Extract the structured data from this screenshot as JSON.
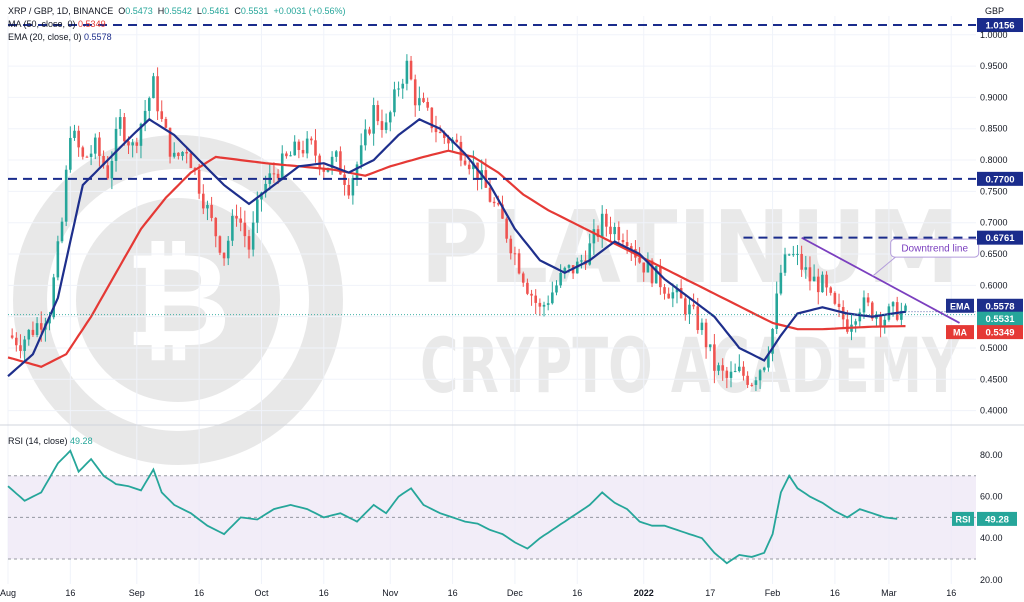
{
  "header": {
    "symbol": "XRP / GBP, 1D, BINANCE",
    "open_label": "O",
    "open": "0.5473",
    "high_label": "H",
    "high": "0.5542",
    "low_label": "L",
    "low": "0.5461",
    "close_label": "C",
    "close": "0.5531",
    "change": "+0.0031 (+0.56%)",
    "ma_label": "MA (50, close, 0)",
    "ma_value": "0.5349",
    "ema_label": "EMA (20, close, 0)",
    "ema_value": "0.5578",
    "rsi_label": "RSI (14, close)",
    "rsi_value": "49.28"
  },
  "currency": "GBP",
  "watermark": {
    "line1": "PLATINUM",
    "line2": "CRYPTO ACADEMY"
  },
  "colors": {
    "up": "#26a69a",
    "down": "#ef5350",
    "ema": "#1e2f8c",
    "ma": "#e53935",
    "rsi": "#26a69a",
    "level_line": "#1a2c8c",
    "trendline": "#7b3fbf",
    "rsi_band": "#ede7f6"
  },
  "chart_data": {
    "type": "candlestick",
    "title": "XRP / GBP, 1D, BINANCE",
    "price_axis": {
      "ticks": [
        "1.0000",
        "0.9500",
        "0.9000",
        "0.8500",
        "0.8000",
        "0.7500",
        "0.7000",
        "0.6500",
        "0.6000",
        "0.5500",
        "0.5000",
        "0.4500",
        "0.4000"
      ],
      "ylim": [
        0.385,
        1.03
      ]
    },
    "time_axis": {
      "labels": [
        "Aug",
        "16",
        "Sep",
        "16",
        "Oct",
        "16",
        "Nov",
        "16",
        "Dec",
        "16",
        "2022",
        "17",
        "Feb",
        "16",
        "Mar",
        "16"
      ],
      "label_day_index": [
        0,
        15,
        31,
        46,
        61,
        76,
        92,
        107,
        122,
        137,
        153,
        169,
        184,
        199,
        212,
        227
      ],
      "bold_labels": [
        "2022"
      ],
      "total_days": 232
    },
    "ohlc_anchors": [
      [
        0,
        0.52
      ],
      [
        3,
        0.51
      ],
      [
        6,
        0.53
      ],
      [
        10,
        0.56
      ],
      [
        13,
        0.7
      ],
      [
        15,
        0.85
      ],
      [
        18,
        0.8
      ],
      [
        21,
        0.82
      ],
      [
        24,
        0.78
      ],
      [
        27,
        0.86
      ],
      [
        30,
        0.82
      ],
      [
        33,
        0.88
      ],
      [
        35,
        0.92
      ],
      [
        37,
        0.86
      ],
      [
        40,
        0.8
      ],
      [
        43,
        0.82
      ],
      [
        46,
        0.76
      ],
      [
        49,
        0.7
      ],
      [
        52,
        0.65
      ],
      [
        55,
        0.72
      ],
      [
        58,
        0.66
      ],
      [
        61,
        0.75
      ],
      [
        64,
        0.78
      ],
      [
        67,
        0.8
      ],
      [
        70,
        0.82
      ],
      [
        73,
        0.82
      ],
      [
        76,
        0.79
      ],
      [
        79,
        0.8
      ],
      [
        82,
        0.76
      ],
      [
        85,
        0.81
      ],
      [
        88,
        0.88
      ],
      [
        91,
        0.85
      ],
      [
        94,
        0.92
      ],
      [
        96,
        0.95
      ],
      [
        98,
        0.9
      ],
      [
        101,
        0.87
      ],
      [
        104,
        0.84
      ],
      [
        107,
        0.83
      ],
      [
        110,
        0.81
      ],
      [
        113,
        0.78
      ],
      [
        116,
        0.74
      ],
      [
        119,
        0.7
      ],
      [
        122,
        0.65
      ],
      [
        125,
        0.6
      ],
      [
        128,
        0.56
      ],
      [
        131,
        0.59
      ],
      [
        134,
        0.62
      ],
      [
        137,
        0.63
      ],
      [
        140,
        0.66
      ],
      [
        143,
        0.7
      ],
      [
        146,
        0.69
      ],
      [
        149,
        0.68
      ],
      [
        152,
        0.64
      ],
      [
        155,
        0.62
      ],
      [
        158,
        0.6
      ],
      [
        161,
        0.58
      ],
      [
        164,
        0.56
      ],
      [
        167,
        0.53
      ],
      [
        170,
        0.47
      ],
      [
        173,
        0.45
      ],
      [
        176,
        0.46
      ],
      [
        179,
        0.45
      ],
      [
        182,
        0.48
      ],
      [
        184,
        0.53
      ],
      [
        186,
        0.62
      ],
      [
        188,
        0.65
      ],
      [
        190,
        0.64
      ],
      [
        193,
        0.61
      ],
      [
        196,
        0.6
      ],
      [
        199,
        0.56
      ],
      [
        202,
        0.54
      ],
      [
        205,
        0.57
      ],
      [
        208,
        0.56
      ],
      [
        211,
        0.55
      ],
      [
        214,
        0.56
      ],
      [
        216,
        0.553
      ]
    ],
    "ohlc_note": "approximate daily closes; candles generated around these",
    "ema20": [
      [
        0,
        0.455
      ],
      [
        6,
        0.49
      ],
      [
        12,
        0.58
      ],
      [
        18,
        0.76
      ],
      [
        24,
        0.8
      ],
      [
        30,
        0.84
      ],
      [
        34,
        0.865
      ],
      [
        40,
        0.84
      ],
      [
        46,
        0.8
      ],
      [
        52,
        0.76
      ],
      [
        58,
        0.73
      ],
      [
        64,
        0.76
      ],
      [
        70,
        0.79
      ],
      [
        76,
        0.795
      ],
      [
        82,
        0.78
      ],
      [
        88,
        0.8
      ],
      [
        94,
        0.84
      ],
      [
        99,
        0.865
      ],
      [
        104,
        0.85
      ],
      [
        110,
        0.81
      ],
      [
        116,
        0.76
      ],
      [
        122,
        0.69
      ],
      [
        128,
        0.64
      ],
      [
        134,
        0.62
      ],
      [
        140,
        0.64
      ],
      [
        146,
        0.67
      ],
      [
        152,
        0.65
      ],
      [
        158,
        0.61
      ],
      [
        164,
        0.58
      ],
      [
        170,
        0.55
      ],
      [
        176,
        0.5
      ],
      [
        182,
        0.48
      ],
      [
        186,
        0.52
      ],
      [
        190,
        0.555
      ],
      [
        196,
        0.565
      ],
      [
        202,
        0.555
      ],
      [
        208,
        0.55
      ],
      [
        214,
        0.556
      ],
      [
        216,
        0.5578
      ]
    ],
    "ma50": [
      [
        0,
        0.485
      ],
      [
        8,
        0.47
      ],
      [
        14,
        0.49
      ],
      [
        20,
        0.55
      ],
      [
        26,
        0.62
      ],
      [
        32,
        0.69
      ],
      [
        38,
        0.74
      ],
      [
        44,
        0.78
      ],
      [
        50,
        0.805
      ],
      [
        56,
        0.8
      ],
      [
        62,
        0.795
      ],
      [
        70,
        0.79
      ],
      [
        78,
        0.785
      ],
      [
        86,
        0.775
      ],
      [
        92,
        0.79
      ],
      [
        100,
        0.805
      ],
      [
        106,
        0.815
      ],
      [
        112,
        0.805
      ],
      [
        118,
        0.78
      ],
      [
        124,
        0.745
      ],
      [
        130,
        0.72
      ],
      [
        136,
        0.7
      ],
      [
        142,
        0.68
      ],
      [
        148,
        0.66
      ],
      [
        154,
        0.64
      ],
      [
        160,
        0.62
      ],
      [
        166,
        0.6
      ],
      [
        172,
        0.58
      ],
      [
        178,
        0.56
      ],
      [
        184,
        0.54
      ],
      [
        190,
        0.53
      ],
      [
        196,
        0.53
      ],
      [
        202,
        0.532
      ],
      [
        208,
        0.534
      ],
      [
        216,
        0.5349
      ]
    ],
    "rsi": [
      [
        0,
        65
      ],
      [
        4,
        58
      ],
      [
        8,
        62
      ],
      [
        12,
        76
      ],
      [
        15,
        82
      ],
      [
        17,
        72
      ],
      [
        20,
        78
      ],
      [
        23,
        70
      ],
      [
        26,
        66
      ],
      [
        29,
        65
      ],
      [
        32,
        63
      ],
      [
        35,
        73
      ],
      [
        37,
        62
      ],
      [
        40,
        56
      ],
      [
        44,
        52
      ],
      [
        48,
        46
      ],
      [
        52,
        42
      ],
      [
        56,
        50
      ],
      [
        60,
        49
      ],
      [
        64,
        54
      ],
      [
        68,
        56
      ],
      [
        72,
        54
      ],
      [
        76,
        50
      ],
      [
        80,
        52
      ],
      [
        84,
        48
      ],
      [
        88,
        56
      ],
      [
        91,
        52
      ],
      [
        94,
        60
      ],
      [
        97,
        64
      ],
      [
        100,
        56
      ],
      [
        104,
        52
      ],
      [
        107,
        50
      ],
      [
        110,
        48
      ],
      [
        113,
        47
      ],
      [
        116,
        44
      ],
      [
        119,
        42
      ],
      [
        122,
        38
      ],
      [
        125,
        35
      ],
      [
        128,
        40
      ],
      [
        131,
        44
      ],
      [
        134,
        48
      ],
      [
        137,
        52
      ],
      [
        140,
        56
      ],
      [
        143,
        62
      ],
      [
        146,
        57
      ],
      [
        149,
        54
      ],
      [
        152,
        48
      ],
      [
        155,
        46
      ],
      [
        158,
        46
      ],
      [
        161,
        44
      ],
      [
        164,
        42
      ],
      [
        167,
        40
      ],
      [
        170,
        33
      ],
      [
        173,
        28
      ],
      [
        176,
        32
      ],
      [
        179,
        31
      ],
      [
        182,
        33
      ],
      [
        184,
        42
      ],
      [
        186,
        62
      ],
      [
        188,
        70
      ],
      [
        190,
        64
      ],
      [
        193,
        60
      ],
      [
        196,
        57
      ],
      [
        199,
        53
      ],
      [
        202,
        50
      ],
      [
        205,
        54
      ],
      [
        208,
        52
      ],
      [
        211,
        50
      ],
      [
        214,
        49.28
      ]
    ],
    "rsi_axis": {
      "ticks": [
        "80.00",
        "60.00",
        "40.00",
        "20.00"
      ],
      "ylim": [
        18,
        92
      ],
      "band": [
        30,
        70
      ],
      "mid": 50
    },
    "horizontal_levels": [
      {
        "value": 1.0156,
        "label": "1.0156"
      },
      {
        "value": 0.77,
        "label": "0.7700"
      },
      {
        "value": 0.6761,
        "label": "0.6761",
        "start_day": 177
      }
    ],
    "downtrend_line": {
      "label": "Downtrend line",
      "from": [
        191,
        0.676
      ],
      "to": [
        229,
        0.54
      ]
    },
    "price_tags": [
      {
        "name": "EMA",
        "label": "EMA",
        "value": "0.5578"
      },
      {
        "name": "close",
        "label": "",
        "value": "0.5531"
      },
      {
        "name": "MA",
        "label": "MA",
        "value": "0.5349"
      }
    ],
    "rsi_tag": {
      "label": "RSI",
      "value": "49.28"
    }
  }
}
